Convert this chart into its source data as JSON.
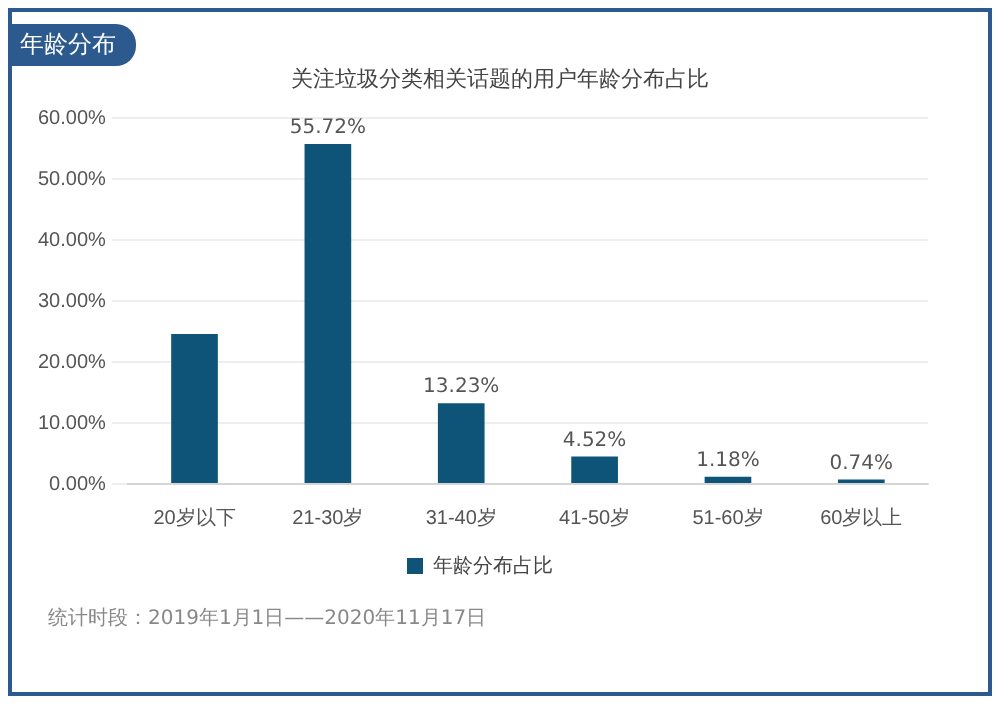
{
  "chart_data": {
    "type": "bar",
    "title": "关注垃圾分类相关话题的用户年龄分布占比",
    "subtitle": "年龄分布",
    "categories": [
      "20岁以下",
      "21-30岁",
      "31-40岁",
      "41-50岁",
      "51-60岁",
      "60岁以上"
    ],
    "series": [
      {
        "name": "年龄分布占比",
        "color": "#0d5478",
        "values": [
          24.6,
          55.72,
          13.23,
          4.52,
          1.18,
          0.74
        ],
        "value_labels": [
          null,
          "55.72%",
          "13.23%",
          "4.52%",
          "1.18%",
          "0.74%"
        ]
      }
    ],
    "ylim": [
      0,
      60
    ],
    "yticks": [
      {
        "value": 0,
        "label": "0.00%"
      },
      {
        "value": 10,
        "label": "10.00%"
      },
      {
        "value": 20,
        "label": "20.00%"
      },
      {
        "value": 30,
        "label": "30.00%"
      },
      {
        "value": 40,
        "label": "40.00%"
      },
      {
        "value": 50,
        "label": "50.00%"
      },
      {
        "value": 60,
        "label": "60.00%"
      }
    ],
    "grid": "y",
    "legend": "bottom",
    "annotations": [
      "统计时段：2019年1月1日——2020年11月17日"
    ]
  }
}
